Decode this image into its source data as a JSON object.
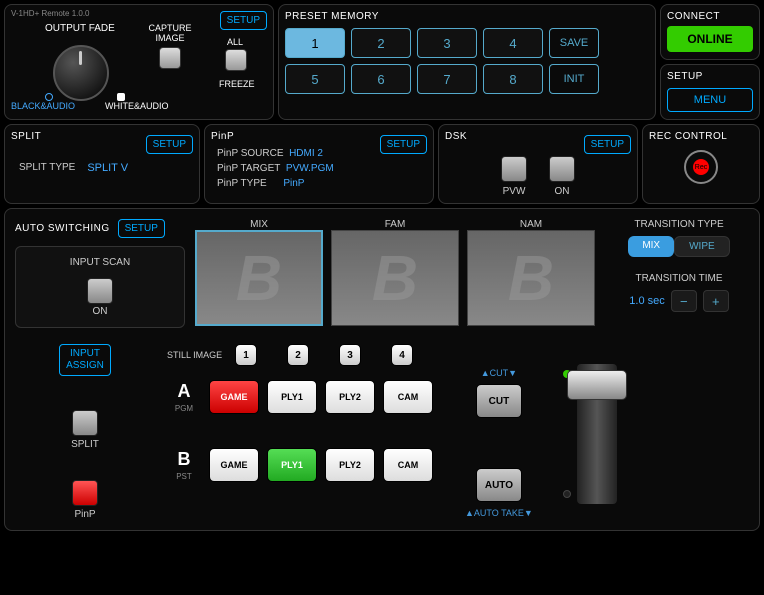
{
  "app_title": "V-1HD+ Remote 1.0.0",
  "top": {
    "output_fade": {
      "title": "OUTPUT FADE",
      "capture_label": "CAPTURE\nIMAGE",
      "all": "ALL",
      "freeze": "FREEZE",
      "black_audio": "BLACK&AUDIO",
      "white_audio": "WHITE&AUDIO",
      "setup": "SETUP"
    },
    "preset": {
      "title": "PRESET MEMORY",
      "buttons": [
        "1",
        "2",
        "3",
        "4",
        "5",
        "6",
        "7",
        "8"
      ],
      "active": 0,
      "save": "SAVE",
      "init": "INIT"
    },
    "connect": {
      "title": "CONNECT",
      "online": "ONLINE",
      "setup_title": "SETUP",
      "menu": "MENU"
    }
  },
  "row2": {
    "split": {
      "title": "SPLIT",
      "setup": "SETUP",
      "type_label": "SPLIT TYPE",
      "type_value": "SPLIT V"
    },
    "pinp": {
      "title": "PinP",
      "setup": "SETUP",
      "src_label": "PinP SOURCE",
      "src_value": "HDMI 2",
      "tgt_label": "PinP TARGET",
      "tgt_value": "PVW.PGM",
      "typ_label": "PinP TYPE",
      "typ_value": "PinP"
    },
    "dsk": {
      "title": "DSK",
      "setup": "SETUP",
      "pvw": "PVW",
      "on": "ON"
    },
    "rec": {
      "title": "REC CONTROL",
      "label": "Rec"
    }
  },
  "main": {
    "auto_sw_title": "AUTO SWITCHING",
    "auto_sw_setup": "SETUP",
    "input_scan": "INPUT SCAN",
    "on": "ON",
    "previews": [
      {
        "label": "MIX",
        "sel": true
      },
      {
        "label": "FAM",
        "sel": false
      },
      {
        "label": "NAM",
        "sel": false
      }
    ],
    "transition_type_title": "TRANSITION TYPE",
    "mix": "MIX",
    "wipe": "WIPE",
    "transition_time_title": "TRANSITION TIME",
    "time_value": "1.0 sec",
    "input_assign": "INPUT\nASSIGN",
    "still_image": "STILL IMAGE",
    "still_buttons": [
      "1",
      "2",
      "3",
      "4"
    ],
    "split_mini": "SPLIT",
    "pinp_mini": "PinP",
    "cut_top": "▲CUT▼",
    "cut": "CUT",
    "auto": "AUTO",
    "auto_take": "▲AUTO TAKE▼",
    "busA": {
      "name": "A",
      "sub": "PGM",
      "btns": [
        "GAME",
        "PLY1",
        "PLY2",
        "CAM"
      ],
      "active": 0
    },
    "busB": {
      "name": "B",
      "sub": "PST",
      "btns": [
        "GAME",
        "PLY1",
        "PLY2",
        "CAM"
      ],
      "active": 1
    }
  },
  "colors": {
    "accent": "#4aaaff",
    "online": "#33cc00",
    "red": "#ff3333",
    "green": "#33cc44"
  }
}
